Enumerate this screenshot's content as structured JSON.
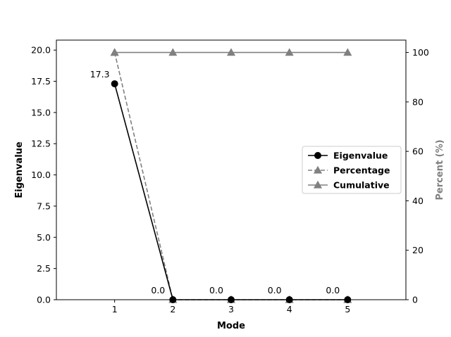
{
  "chart_data": {
    "type": "line",
    "x": [
      1,
      2,
      3,
      4,
      5
    ],
    "xlabel": "Mode",
    "ylabel": "Eigenvalue",
    "y2label": "Percent (%)",
    "xlim": [
      0,
      6
    ],
    "ylim": [
      0,
      20.8
    ],
    "y2lim": [
      0,
      105
    ],
    "x_ticks": [
      "1",
      "2",
      "3",
      "4",
      "5"
    ],
    "y_ticks": [
      "0.0",
      "2.5",
      "5.0",
      "7.5",
      "10.0",
      "12.5",
      "15.0",
      "17.5",
      "20.0"
    ],
    "y2_ticks": [
      "0",
      "20",
      "40",
      "60",
      "80",
      "100"
    ],
    "grid": false,
    "legend_position": "center-right",
    "series": [
      {
        "name": "Eigenvalue",
        "axis": "left",
        "values": [
          17.3,
          0.0,
          0.0,
          0.0,
          0.0
        ],
        "color": "#000000",
        "marker": "circle",
        "linestyle": "solid"
      },
      {
        "name": "Percentage",
        "axis": "right",
        "values": [
          100,
          0,
          0,
          0,
          0
        ],
        "color": "#808080",
        "marker": "triangle",
        "linestyle": "dashed"
      },
      {
        "name": "Cumulative",
        "axis": "right",
        "values": [
          100,
          100,
          100,
          100,
          100
        ],
        "color": "#808080",
        "marker": "triangle",
        "linestyle": "solid"
      }
    ],
    "data_labels": [
      "17.3",
      "0.0",
      "0.0",
      "0.0",
      "0.0"
    ]
  }
}
